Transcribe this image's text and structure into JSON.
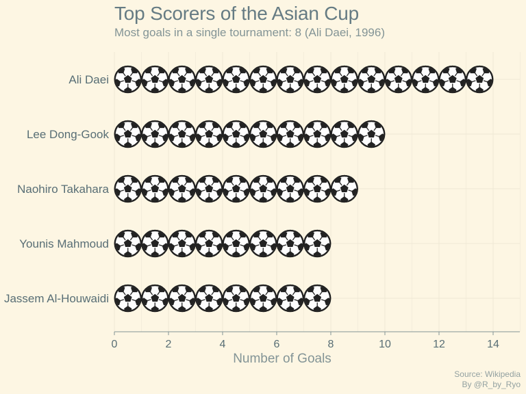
{
  "title": "Top Scorers of the Asian Cup",
  "subtitle": "Most goals in a single tournament: 8 (Ali Daei, 1996)",
  "caption": {
    "source": "Source: Wikipedia",
    "author": "By @R_by_Ryo"
  },
  "chart_data": {
    "type": "bar",
    "mark": "soccer-ball-icon",
    "categories": [
      "Ali Daei",
      "Lee Dong-Gook",
      "Naohiro Takahara",
      "Younis Mahmoud",
      "Jassem Al-Houwaidi"
    ],
    "values": [
      14,
      10,
      9,
      8,
      8
    ],
    "xlabel": "Number of Goals",
    "ylabel": "",
    "xlim": [
      0,
      15
    ],
    "xticks": [
      0,
      2,
      4,
      6,
      8,
      10,
      12,
      14
    ],
    "orientation": "horizontal",
    "grid": true,
    "colors": {
      "ball": "#222222",
      "ball_face": "#fdfdfd",
      "grid": "#eee8d5",
      "axis": "#839496"
    }
  }
}
